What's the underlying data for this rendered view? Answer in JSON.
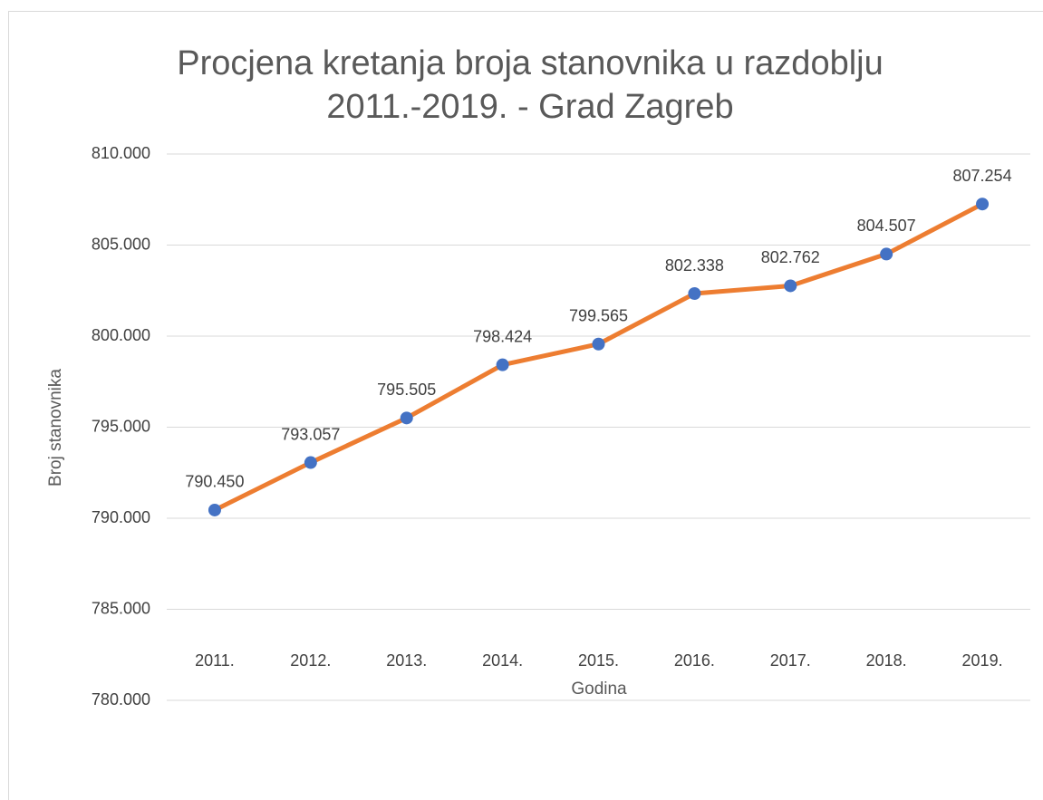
{
  "chart_data": {
    "type": "line",
    "title": [
      "Procjena kretanja broja stanovnika u razdoblju",
      "2011.-2019. - Grad Zagreb"
    ],
    "x_label": "Godina",
    "y_label": "Broj stanovnika",
    "categories": [
      "2011.",
      "2012.",
      "2013.",
      "2014.",
      "2015.",
      "2016.",
      "2017.",
      "2018.",
      "2019."
    ],
    "values": [
      790450,
      793057,
      795505,
      798424,
      799565,
      802338,
      802762,
      804507,
      807254
    ],
    "value_labels": [
      "790.450",
      "793.057",
      "795.505",
      "798.424",
      "799.565",
      "802.338",
      "802.762",
      "804.507",
      "807.254"
    ],
    "color": "#ed7d31",
    "marker_color": "#4472c4",
    "ylim": [
      780000,
      810000
    ],
    "yticks": [
      {
        "value": 780000,
        "label": "780.000"
      },
      {
        "value": 785000,
        "label": "785.000"
      },
      {
        "value": 790000,
        "label": "790.000"
      },
      {
        "value": 795000,
        "label": "795.000"
      },
      {
        "value": 800000,
        "label": "800.000"
      },
      {
        "value": 805000,
        "label": "805.000"
      },
      {
        "value": 810000,
        "label": "810.000"
      }
    ],
    "grid": true
  }
}
